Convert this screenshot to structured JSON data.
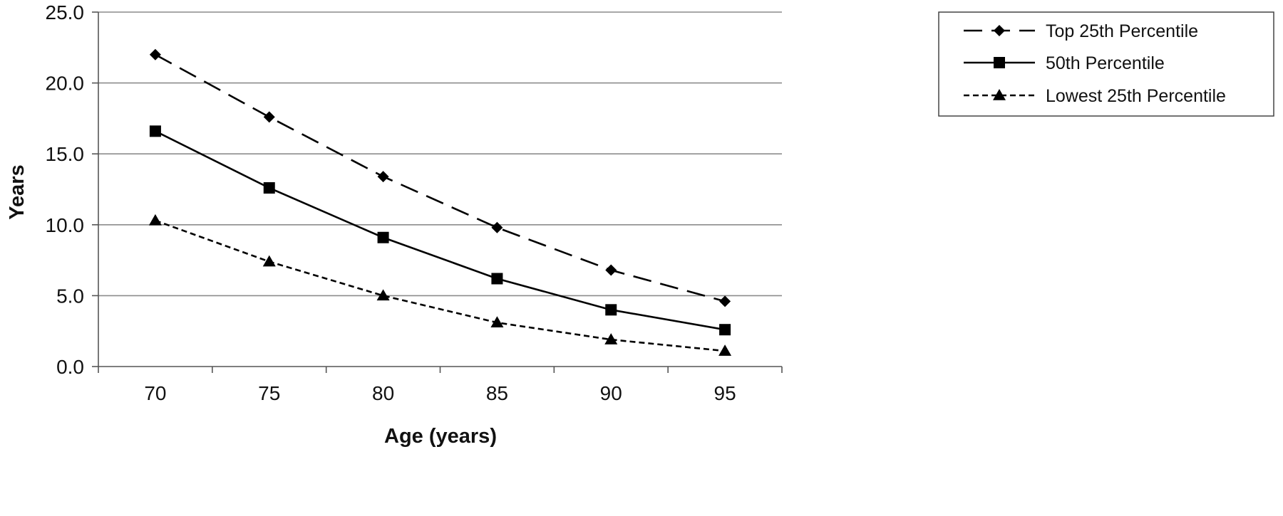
{
  "chart_data": {
    "type": "line",
    "title": "",
    "xlabel": "Age (years)",
    "ylabel": "Years",
    "x": [
      70,
      75,
      80,
      85,
      90,
      95
    ],
    "categories": [
      "70",
      "75",
      "80",
      "85",
      "90",
      "95"
    ],
    "ylim": [
      0,
      25
    ],
    "yticks": [
      "0.0",
      "5.0",
      "10.0",
      "15.0",
      "20.0",
      "25.0"
    ],
    "grid": "horizontal",
    "legend_position": "right",
    "series": [
      {
        "name": "Top 25th Percentile",
        "values": [
          22.0,
          17.6,
          13.4,
          9.8,
          6.8,
          4.6
        ],
        "line_style": "long-dash",
        "marker": "diamond",
        "color": "#000000"
      },
      {
        "name": "50th Percentile",
        "values": [
          16.6,
          12.6,
          9.1,
          6.2,
          4.0,
          2.6
        ],
        "line_style": "solid",
        "marker": "square",
        "color": "#000000"
      },
      {
        "name": "Lowest 25th Percentile",
        "values": [
          10.3,
          7.4,
          5.0,
          3.1,
          1.9,
          1.1
        ],
        "line_style": "short-dash",
        "marker": "triangle",
        "color": "#000000"
      }
    ]
  }
}
